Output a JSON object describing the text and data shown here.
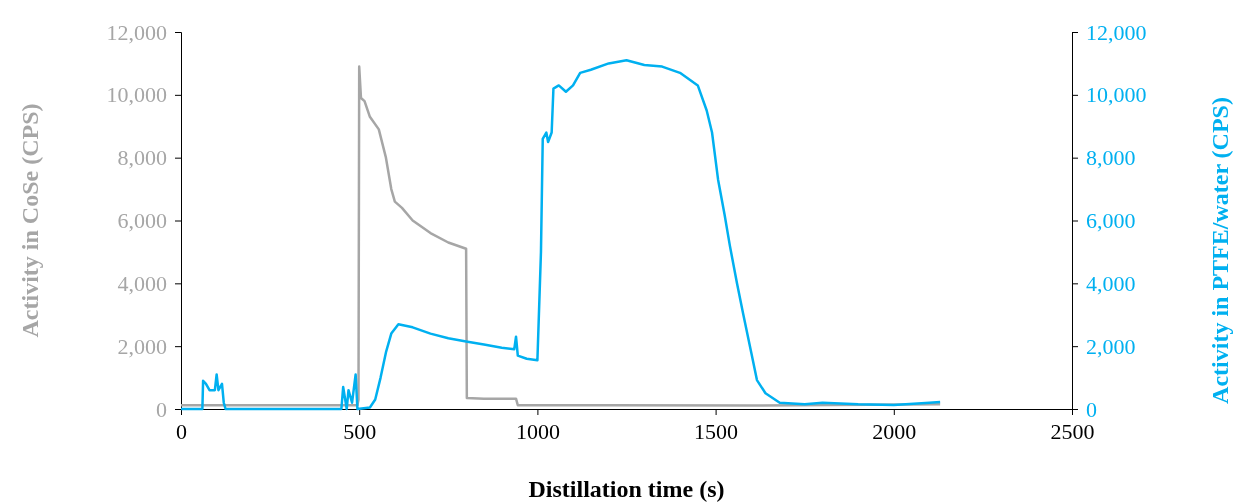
{
  "chart_data": {
    "type": "line",
    "xlabel": "Distillation time (s)",
    "ylabel": "Activity in CoSe (CPS)",
    "y2label": "Activity in PTFE/water (CPS)",
    "xlim": [
      0,
      2500
    ],
    "xticks": [
      0,
      500,
      1000,
      1500,
      2000,
      2500
    ],
    "ylim": [
      0,
      12000
    ],
    "yticks": [
      {
        "value": 0,
        "label": "0"
      },
      {
        "value": 2000,
        "label": "2,000"
      },
      {
        "value": 4000,
        "label": "4,000"
      },
      {
        "value": 6000,
        "label": "6,000"
      },
      {
        "value": 8000,
        "label": "8,000"
      },
      {
        "value": 10000,
        "label": "10,000"
      },
      {
        "value": 12000,
        "label": "12,000"
      }
    ],
    "y2lim": [
      0,
      12000
    ],
    "y2ticks": [
      {
        "value": 0,
        "label": "0"
      },
      {
        "value": 2000,
        "label": "2,000"
      },
      {
        "value": 4000,
        "label": "4,000"
      },
      {
        "value": 6000,
        "label": "6,000"
      },
      {
        "value": 8000,
        "label": "8,000"
      },
      {
        "value": 10000,
        "label": "10,000"
      },
      {
        "value": 12000,
        "label": "12,000"
      }
    ],
    "grid": false,
    "marker": "none",
    "line_style": "solid",
    "series": [
      {
        "color": "#a6a6a6",
        "x": [
          0,
          495,
          498,
          500,
          505,
          515,
          530,
          555,
          575,
          590,
          600,
          620,
          650,
          700,
          750,
          800,
          802,
          850,
          940,
          945,
          1200,
          1600,
          2130
        ],
        "values": [
          120,
          120,
          300,
          10900,
          9900,
          9800,
          9300,
          8900,
          8000,
          7000,
          6600,
          6400,
          6000,
          5600,
          5300,
          5100,
          350,
          330,
          330,
          120,
          120,
          110,
          150
        ]
      },
      {
        "color": "#00b0f0",
        "axis": "y2",
        "x": [
          0,
          60,
          62,
          70,
          80,
          95,
          100,
          105,
          115,
          120,
          125,
          450,
          455,
          465,
          470,
          480,
          490,
          495,
          530,
          545,
          560,
          575,
          590,
          610,
          650,
          700,
          750,
          800,
          850,
          900,
          935,
          940,
          945,
          970,
          1000,
          1010,
          1015,
          1025,
          1030,
          1040,
          1045,
          1060,
          1080,
          1100,
          1120,
          1150,
          1200,
          1250,
          1300,
          1350,
          1400,
          1450,
          1475,
          1490,
          1507,
          1525,
          1540,
          1560,
          1577,
          1600,
          1616,
          1640,
          1680,
          1750,
          1800,
          1900,
          2000,
          2100,
          2130
        ],
        "values": [
          0,
          0,
          900,
          800,
          600,
          600,
          1100,
          600,
          800,
          200,
          0,
          0,
          700,
          0,
          600,
          200,
          1100,
          0,
          50,
          300,
          1000,
          1800,
          2400,
          2700,
          2600,
          2400,
          2250,
          2150,
          2050,
          1950,
          1900,
          2300,
          1700,
          1600,
          1550,
          5000,
          8600,
          8800,
          8500,
          8800,
          10200,
          10300,
          10100,
          10300,
          10700,
          10800,
          11000,
          11100,
          10950,
          10900,
          10700,
          10300,
          9500,
          8800,
          7300,
          6200,
          5200,
          4000,
          3050,
          1800,
          920,
          500,
          200,
          150,
          200,
          150,
          130,
          200,
          220
        ]
      }
    ]
  }
}
